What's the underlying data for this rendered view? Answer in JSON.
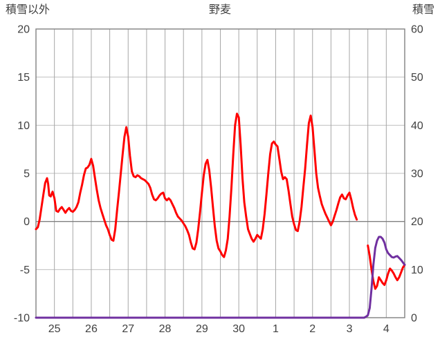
{
  "title": "野麦",
  "left_axis": {
    "label": "積雪以外",
    "min": -10,
    "max": 20,
    "ticks": [
      20,
      15,
      10,
      5,
      0,
      -5,
      -10
    ]
  },
  "right_axis": {
    "label": "積雪",
    "min": 0,
    "max": 60,
    "ticks": [
      60,
      50,
      40,
      30,
      20,
      10,
      0
    ]
  },
  "x_axis": {
    "labels": [
      "25",
      "26",
      "27",
      "28",
      "29",
      "30",
      "1",
      "2",
      "3",
      "4"
    ]
  },
  "colors": {
    "text": "#404040",
    "grid_vertical": "#a6a6a6",
    "grid_horizontal": "#bfbfbf",
    "zero_line": "#7f7f7f",
    "border": "#808080",
    "red_series": "#ff0000",
    "purple_series": "#7030a0"
  },
  "chart_data": {
    "type": "line",
    "title": "野麦",
    "xlabel": "",
    "ylabel_left": "積雪以外",
    "ylabel_right": "積雪",
    "x_range": [
      0,
      10
    ],
    "gridline_step_x": 0.5,
    "left_ylim": [
      -10,
      20
    ],
    "right_ylim": [
      0,
      60
    ],
    "grid": true,
    "legend_position": "none",
    "series": [
      {
        "name": "積雪以外(赤)",
        "axis": "left",
        "color": "#ff0000",
        "width": 3,
        "segments": [
          [
            [
              0.0,
              -0.8
            ],
            [
              0.05,
              -0.6
            ],
            [
              0.1,
              0.2
            ],
            [
              0.15,
              1.5
            ],
            [
              0.2,
              2.8
            ],
            [
              0.25,
              4.0
            ],
            [
              0.3,
              4.5
            ],
            [
              0.33,
              3.9
            ],
            [
              0.36,
              2.7
            ],
            [
              0.4,
              2.6
            ],
            [
              0.45,
              3.1
            ],
            [
              0.5,
              2.4
            ],
            [
              0.55,
              1.1
            ],
            [
              0.6,
              1.0
            ],
            [
              0.65,
              1.3
            ],
            [
              0.7,
              1.5
            ],
            [
              0.75,
              1.2
            ],
            [
              0.8,
              0.9
            ],
            [
              0.85,
              1.2
            ],
            [
              0.9,
              1.4
            ],
            [
              0.95,
              1.1
            ],
            [
              1.0,
              1.0
            ],
            [
              1.05,
              1.2
            ],
            [
              1.1,
              1.5
            ],
            [
              1.15,
              2.0
            ],
            [
              1.2,
              3.0
            ],
            [
              1.25,
              3.8
            ],
            [
              1.3,
              4.8
            ],
            [
              1.35,
              5.5
            ],
            [
              1.4,
              5.6
            ],
            [
              1.45,
              5.9
            ],
            [
              1.5,
              6.5
            ],
            [
              1.55,
              5.8
            ],
            [
              1.6,
              4.5
            ],
            [
              1.65,
              3.3
            ],
            [
              1.7,
              2.2
            ],
            [
              1.75,
              1.4
            ],
            [
              1.8,
              0.8
            ],
            [
              1.85,
              0.2
            ],
            [
              1.9,
              -0.4
            ],
            [
              1.95,
              -0.8
            ],
            [
              2.0,
              -1.4
            ],
            [
              2.05,
              -1.9
            ],
            [
              2.1,
              -2.0
            ],
            [
              2.15,
              -0.8
            ],
            [
              2.2,
              1.2
            ],
            [
              2.25,
              3.0
            ],
            [
              2.3,
              5.0
            ],
            [
              2.35,
              7.0
            ],
            [
              2.4,
              8.8
            ],
            [
              2.45,
              9.8
            ],
            [
              2.5,
              8.8
            ],
            [
              2.55,
              6.8
            ],
            [
              2.6,
              5.2
            ],
            [
              2.65,
              4.7
            ],
            [
              2.7,
              4.6
            ],
            [
              2.75,
              4.8
            ],
            [
              2.8,
              4.7
            ],
            [
              2.85,
              4.5
            ],
            [
              2.9,
              4.4
            ],
            [
              2.95,
              4.3
            ],
            [
              3.0,
              4.1
            ],
            [
              3.05,
              3.9
            ],
            [
              3.1,
              3.5
            ],
            [
              3.15,
              2.8
            ],
            [
              3.2,
              2.3
            ],
            [
              3.25,
              2.2
            ],
            [
              3.3,
              2.4
            ],
            [
              3.35,
              2.7
            ],
            [
              3.4,
              2.9
            ],
            [
              3.45,
              3.0
            ],
            [
              3.5,
              2.4
            ],
            [
              3.55,
              2.2
            ],
            [
              3.6,
              2.4
            ],
            [
              3.65,
              2.2
            ],
            [
              3.7,
              1.8
            ],
            [
              3.75,
              1.4
            ],
            [
              3.8,
              0.9
            ],
            [
              3.85,
              0.5
            ],
            [
              3.9,
              0.3
            ],
            [
              3.95,
              0.1
            ],
            [
              4.0,
              -0.2
            ],
            [
              4.05,
              -0.5
            ],
            [
              4.1,
              -0.9
            ],
            [
              4.15,
              -1.4
            ],
            [
              4.2,
              -2.2
            ],
            [
              4.25,
              -2.8
            ],
            [
              4.3,
              -2.9
            ],
            [
              4.35,
              -2.2
            ],
            [
              4.4,
              -0.8
            ],
            [
              4.45,
              1.0
            ],
            [
              4.5,
              3.0
            ],
            [
              4.55,
              4.8
            ],
            [
              4.6,
              6.0
            ],
            [
              4.65,
              6.4
            ],
            [
              4.7,
              5.3
            ],
            [
              4.75,
              3.5
            ],
            [
              4.8,
              1.5
            ],
            [
              4.85,
              -0.5
            ],
            [
              4.9,
              -2.0
            ],
            [
              4.95,
              -2.8
            ],
            [
              5.0,
              -3.1
            ],
            [
              5.05,
              -3.5
            ],
            [
              5.1,
              -3.7
            ],
            [
              5.15,
              -3.0
            ],
            [
              5.2,
              -1.8
            ],
            [
              5.25,
              0.5
            ],
            [
              5.3,
              3.5
            ],
            [
              5.35,
              7.0
            ],
            [
              5.4,
              10.0
            ],
            [
              5.45,
              11.2
            ],
            [
              5.5,
              10.8
            ],
            [
              5.55,
              8.0
            ],
            [
              5.6,
              4.5
            ],
            [
              5.65,
              2.0
            ],
            [
              5.7,
              0.5
            ],
            [
              5.75,
              -0.8
            ],
            [
              5.8,
              -1.3
            ],
            [
              5.85,
              -1.8
            ],
            [
              5.9,
              -2.1
            ],
            [
              5.95,
              -1.8
            ],
            [
              6.0,
              -1.4
            ],
            [
              6.05,
              -1.6
            ],
            [
              6.1,
              -1.8
            ],
            [
              6.15,
              -0.8
            ],
            [
              6.2,
              0.8
            ],
            [
              6.25,
              2.8
            ],
            [
              6.3,
              5.0
            ],
            [
              6.35,
              7.0
            ],
            [
              6.4,
              8.1
            ],
            [
              6.45,
              8.3
            ],
            [
              6.5,
              8.0
            ],
            [
              6.55,
              7.8
            ],
            [
              6.6,
              6.5
            ],
            [
              6.65,
              5.2
            ],
            [
              6.7,
              4.4
            ],
            [
              6.75,
              4.6
            ],
            [
              6.8,
              4.4
            ],
            [
              6.85,
              3.2
            ],
            [
              6.9,
              1.8
            ],
            [
              6.95,
              0.5
            ],
            [
              7.0,
              -0.3
            ],
            [
              7.05,
              -0.9
            ],
            [
              7.1,
              -1.0
            ],
            [
              7.15,
              0.0
            ],
            [
              7.2,
              1.5
            ],
            [
              7.25,
              3.5
            ],
            [
              7.3,
              5.5
            ],
            [
              7.35,
              8.0
            ],
            [
              7.4,
              10.2
            ],
            [
              7.45,
              11.0
            ],
            [
              7.5,
              9.8
            ],
            [
              7.55,
              7.5
            ],
            [
              7.6,
              5.0
            ],
            [
              7.65,
              3.5
            ],
            [
              7.7,
              2.6
            ],
            [
              7.75,
              1.8
            ],
            [
              7.8,
              1.3
            ],
            [
              7.85,
              0.8
            ],
            [
              7.9,
              0.4
            ],
            [
              7.95,
              0.0
            ],
            [
              8.0,
              -0.4
            ],
            [
              8.05,
              0.0
            ],
            [
              8.1,
              0.6
            ],
            [
              8.15,
              1.2
            ],
            [
              8.2,
              1.9
            ],
            [
              8.25,
              2.5
            ],
            [
              8.3,
              2.8
            ],
            [
              8.35,
              2.4
            ],
            [
              8.4,
              2.3
            ],
            [
              8.45,
              2.7
            ],
            [
              8.5,
              3.0
            ],
            [
              8.55,
              2.3
            ],
            [
              8.6,
              1.4
            ],
            [
              8.65,
              0.7
            ],
            [
              8.7,
              0.2
            ]
          ],
          [
            [
              9.0,
              -2.5
            ],
            [
              9.05,
              -3.6
            ],
            [
              9.1,
              -5.0
            ],
            [
              9.15,
              -6.2
            ],
            [
              9.2,
              -7.0
            ],
            [
              9.25,
              -6.7
            ],
            [
              9.3,
              -5.8
            ],
            [
              9.35,
              -6.1
            ],
            [
              9.4,
              -6.4
            ],
            [
              9.45,
              -6.6
            ],
            [
              9.5,
              -6.1
            ],
            [
              9.55,
              -5.4
            ],
            [
              9.6,
              -4.9
            ],
            [
              9.65,
              -5.1
            ],
            [
              9.7,
              -5.4
            ],
            [
              9.75,
              -5.8
            ],
            [
              9.8,
              -6.1
            ],
            [
              9.85,
              -5.8
            ],
            [
              9.9,
              -5.3
            ],
            [
              9.95,
              -4.8
            ],
            [
              10.0,
              -4.5
            ]
          ]
        ]
      },
      {
        "name": "積雪(紫)",
        "axis": "right",
        "color": "#7030a0",
        "width": 3,
        "segments": [
          [
            [
              0.0,
              0
            ],
            [
              8.9,
              0
            ],
            [
              8.95,
              0.2
            ],
            [
              9.0,
              0.5
            ],
            [
              9.05,
              2.0
            ],
            [
              9.1,
              6.0
            ],
            [
              9.15,
              11.0
            ],
            [
              9.2,
              14.5
            ],
            [
              9.25,
              16.0
            ],
            [
              9.3,
              16.8
            ],
            [
              9.35,
              16.8
            ],
            [
              9.4,
              16.4
            ],
            [
              9.45,
              15.6
            ],
            [
              9.5,
              14.2
            ],
            [
              9.55,
              13.4
            ],
            [
              9.6,
              13.0
            ],
            [
              9.65,
              12.6
            ],
            [
              9.7,
              12.5
            ],
            [
              9.75,
              12.7
            ],
            [
              9.8,
              12.8
            ],
            [
              9.85,
              12.4
            ],
            [
              9.9,
              12.0
            ],
            [
              9.95,
              11.5
            ],
            [
              10.0,
              11.0
            ]
          ]
        ]
      }
    ]
  }
}
